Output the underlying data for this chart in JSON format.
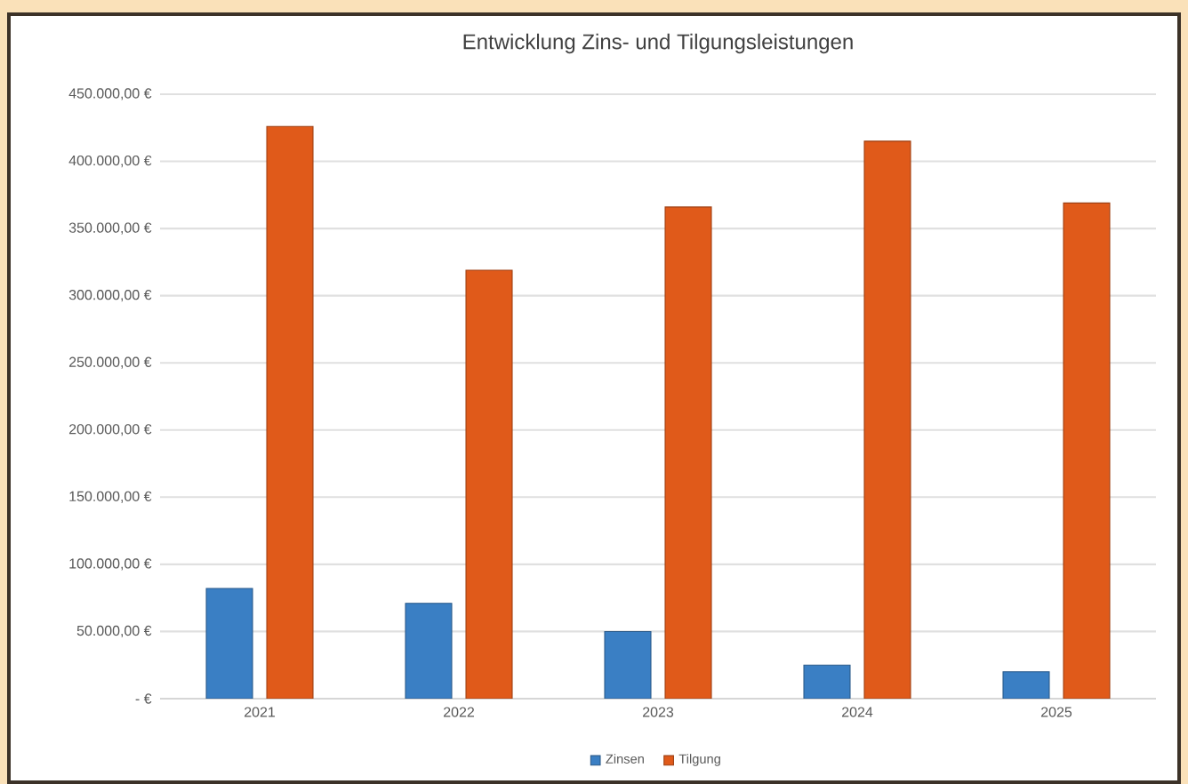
{
  "chart_data": {
    "type": "bar",
    "title": "Entwicklung Zins- und Tilgungsleistungen",
    "categories": [
      "2021",
      "2022",
      "2023",
      "2024",
      "2025"
    ],
    "series": [
      {
        "name": "Zinsen",
        "color": "#3a7fc4",
        "values": [
          82000,
          71000,
          50000,
          25000,
          20000
        ]
      },
      {
        "name": "Tilgung",
        "color": "#e05a1a",
        "values": [
          426000,
          319000,
          366000,
          415000,
          369000
        ]
      }
    ],
    "ylim": [
      0,
      450000
    ],
    "yticks": [
      {
        "value": 0,
        "label": "-   €"
      },
      {
        "value": 50000,
        "label": "50.000,00 €"
      },
      {
        "value": 100000,
        "label": "100.000,00 €"
      },
      {
        "value": 150000,
        "label": "150.000,00 €"
      },
      {
        "value": 200000,
        "label": "200.000,00 €"
      },
      {
        "value": 250000,
        "label": "250.000,00 €"
      },
      {
        "value": 300000,
        "label": "300.000,00 €"
      },
      {
        "value": 350000,
        "label": "350.000,00 €"
      },
      {
        "value": 400000,
        "label": "400.000,00 €"
      },
      {
        "value": 450000,
        "label": "450.000,00 €"
      }
    ],
    "grid": "y",
    "legend": "bottom"
  }
}
